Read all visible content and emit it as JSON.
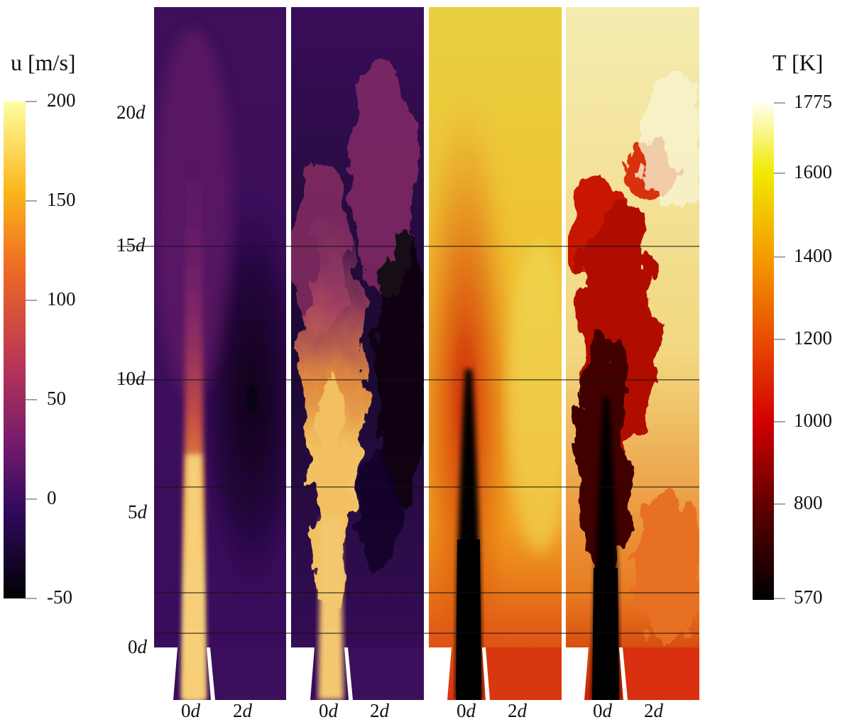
{
  "velocity_colorbar": {
    "title": "u [m/s]",
    "ticks": [
      "200",
      "150",
      "100",
      "50",
      "0",
      "-50"
    ],
    "colormap": [
      "#fcffa4",
      "#fbb61a",
      "#ed6925",
      "#bc3754",
      "#781c6d",
      "#320a5e",
      "#000004"
    ]
  },
  "temperature_colorbar": {
    "title": "T [K]",
    "ticks": [
      "1775",
      "1600",
      "1400",
      "1200",
      "1000",
      "800",
      "570"
    ],
    "colormap": [
      "#fffff0",
      "#f0ea00",
      "#f5a000",
      "#e84a00",
      "#d40000",
      "#5a0000",
      "#000000"
    ]
  },
  "axial_axis": {
    "ticks": [
      {
        "num": "20",
        "unit": "d"
      },
      {
        "num": "15",
        "unit": "d"
      },
      {
        "num": "10",
        "unit": "d"
      },
      {
        "num": "5",
        "unit": "d"
      },
      {
        "num": "0",
        "unit": "d"
      }
    ]
  },
  "radial_axis": {
    "ticks": [
      {
        "num": "0",
        "unit": "d"
      },
      {
        "num": "2",
        "unit": "d"
      },
      {
        "num": "0",
        "unit": "d"
      },
      {
        "num": "2",
        "unit": "d"
      },
      {
        "num": "0",
        "unit": "d"
      },
      {
        "num": "2",
        "unit": "d"
      },
      {
        "num": "0",
        "unit": "d"
      },
      {
        "num": "2",
        "unit": "d"
      }
    ]
  },
  "panels": [
    {
      "field": "velocity",
      "kind": "mean"
    },
    {
      "field": "velocity",
      "kind": "instantaneous"
    },
    {
      "field": "temperature",
      "kind": "mean"
    },
    {
      "field": "temperature",
      "kind": "instantaneous"
    }
  ]
}
